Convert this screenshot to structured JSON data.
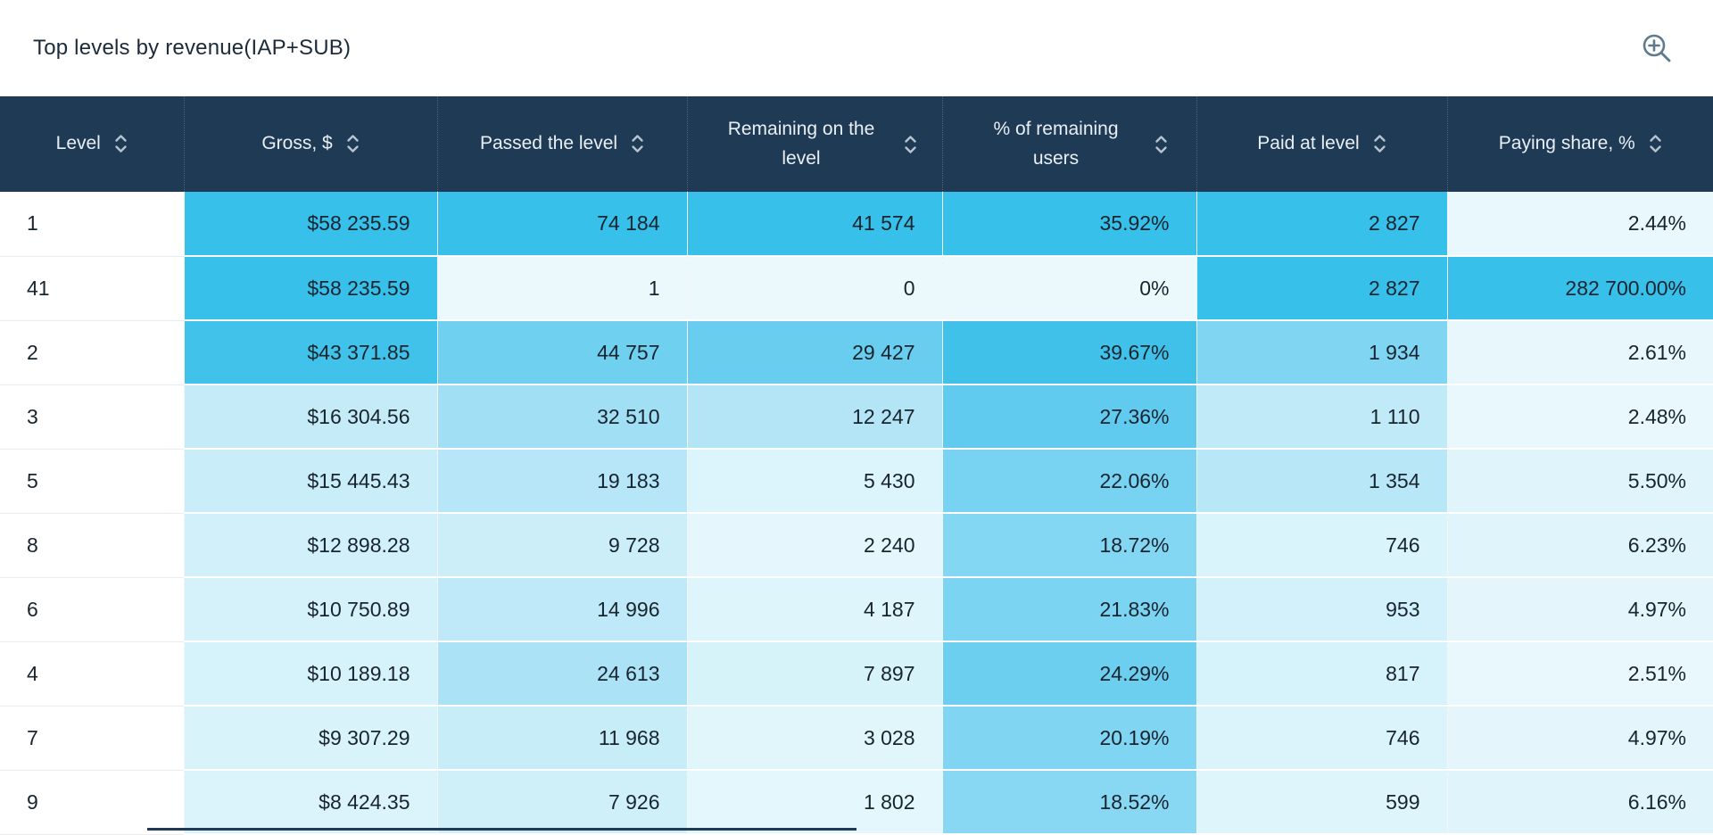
{
  "widget": {
    "title": "Top levels by revenue(IAP+SUB)"
  },
  "header_icons": {
    "zoom_in": "magnifier-plus-icon"
  },
  "colors": {
    "header_bg": "#1e3a54",
    "header_text": "#e9eff5",
    "sort_icon": "#b6c4d0",
    "zoom_icon": "#5e7a8e",
    "body_text": "#18242e",
    "heat_max": "#36c0ea",
    "heat_min": "#ebf9fd",
    "row_divider": "#e9eef2"
  },
  "table": {
    "columns": [
      {
        "label": "Level",
        "sortable": true
      },
      {
        "label": "Gross, $",
        "sortable": true
      },
      {
        "label": "Passed the level",
        "sortable": true
      },
      {
        "label": "Remaining on the level",
        "sortable": true
      },
      {
        "label": "% of remaining users",
        "sortable": true
      },
      {
        "label": "Paid at level",
        "sortable": true
      },
      {
        "label": "Paying share, %",
        "sortable": true
      }
    ],
    "rows": [
      {
        "cells": [
          {
            "text": "1",
            "bg": "#ffffff"
          },
          {
            "text": "$58 235.59",
            "bg": "#36c0ea"
          },
          {
            "text": "74 184",
            "bg": "#36c0ea"
          },
          {
            "text": "41 574",
            "bg": "#36c0ea"
          },
          {
            "text": "35.92%",
            "bg": "#36c0ea"
          },
          {
            "text": "2 827",
            "bg": "#36c0ea"
          },
          {
            "text": "2.44%",
            "bg": "#e9f8fd"
          }
        ]
      },
      {
        "cells": [
          {
            "text": "41",
            "bg": "#ffffff"
          },
          {
            "text": "$58 235.59",
            "bg": "#36c0ea"
          },
          {
            "text": "1",
            "bg": "#ebf9fd"
          },
          {
            "text": "0",
            "bg": "#ebf9fd"
          },
          {
            "text": "0%",
            "bg": "#ebf9fd"
          },
          {
            "text": "2 827",
            "bg": "#36c0ea"
          },
          {
            "text": "282 700.00%",
            "bg": "#36c0ea"
          }
        ]
      },
      {
        "cells": [
          {
            "text": "2",
            "bg": "#ffffff"
          },
          {
            "text": "$43 371.85",
            "bg": "#40c2ea"
          },
          {
            "text": "44 757",
            "bg": "#70d0f0"
          },
          {
            "text": "29 427",
            "bg": "#68cdef"
          },
          {
            "text": "39.67%",
            "bg": "#3fc1ea"
          },
          {
            "text": "1 934",
            "bg": "#80d6f2"
          },
          {
            "text": "2.61%",
            "bg": "#e7f7fc"
          }
        ]
      },
      {
        "cells": [
          {
            "text": "3",
            "bg": "#ffffff"
          },
          {
            "text": "$16 304.56",
            "bg": "#c5ebf8"
          },
          {
            "text": "32 510",
            "bg": "#a0dff4"
          },
          {
            "text": "12 247",
            "bg": "#b3e5f6"
          },
          {
            "text": "27.36%",
            "bg": "#60cbee"
          },
          {
            "text": "1 110",
            "bg": "#c0eaf8"
          },
          {
            "text": "2.48%",
            "bg": "#e9f8fd"
          }
        ]
      },
      {
        "cells": [
          {
            "text": "5",
            "bg": "#ffffff"
          },
          {
            "text": "$15 445.43",
            "bg": "#c9edf9"
          },
          {
            "text": "19 183",
            "bg": "#b6e6f7"
          },
          {
            "text": "5 430",
            "bg": "#dcf4fb"
          },
          {
            "text": "22.06%",
            "bg": "#77d3f1"
          },
          {
            "text": "1 354",
            "bg": "#b8e7f7"
          },
          {
            "text": "5.50%",
            "bg": "#e0f5fb"
          }
        ]
      },
      {
        "cells": [
          {
            "text": "8",
            "bg": "#ffffff"
          },
          {
            "text": "$12 898.28",
            "bg": "#d1f0fa"
          },
          {
            "text": "9 728",
            "bg": "#cbeef9"
          },
          {
            "text": "2 240",
            "bg": "#e5f7fc"
          },
          {
            "text": "18.72%",
            "bg": "#84d7f2"
          },
          {
            "text": "746",
            "bg": "#daf4fb"
          },
          {
            "text": "6.23%",
            "bg": "#dff5fb"
          }
        ]
      },
      {
        "cells": [
          {
            "text": "6",
            "bg": "#ffffff"
          },
          {
            "text": "$10 750.89",
            "bg": "#d5f1fa"
          },
          {
            "text": "14 996",
            "bg": "#bfe9f8"
          },
          {
            "text": "4 187",
            "bg": "#def5fb"
          },
          {
            "text": "21.83%",
            "bg": "#7bd4f1"
          },
          {
            "text": "953",
            "bg": "#d3f1fa"
          },
          {
            "text": "4.97%",
            "bg": "#e4f6fc"
          }
        ]
      },
      {
        "cells": [
          {
            "text": "4",
            "bg": "#ffffff"
          },
          {
            "text": "$10 189.18",
            "bg": "#d6f2fa"
          },
          {
            "text": "24 613",
            "bg": "#abe2f5"
          },
          {
            "text": "7 897",
            "bg": "#d7f3fa"
          },
          {
            "text": "24.29%",
            "bg": "#6ccfef"
          },
          {
            "text": "817",
            "bg": "#d6f2fa"
          },
          {
            "text": "2.51%",
            "bg": "#e9f8fd"
          }
        ]
      },
      {
        "cells": [
          {
            "text": "7",
            "bg": "#ffffff"
          },
          {
            "text": "$9 307.29",
            "bg": "#d9f3fb"
          },
          {
            "text": "11 968",
            "bg": "#c7edf9"
          },
          {
            "text": "3 028",
            "bg": "#e1f6fb"
          },
          {
            "text": "20.19%",
            "bg": "#7fd5f2"
          },
          {
            "text": "746",
            "bg": "#dbf4fb"
          },
          {
            "text": "4.97%",
            "bg": "#e4f6fc"
          }
        ]
      },
      {
        "cells": [
          {
            "text": "9",
            "bg": "#ffffff"
          },
          {
            "text": "$8 424.35",
            "bg": "#dbf4fb"
          },
          {
            "text": "7 926",
            "bg": "#cff0f9"
          },
          {
            "text": "1 802",
            "bg": "#e4f7fc"
          },
          {
            "text": "18.52%",
            "bg": "#88d8f3"
          },
          {
            "text": "599",
            "bg": "#ddf5fb"
          },
          {
            "text": "6.16%",
            "bg": "#dff5fb"
          }
        ]
      }
    ]
  },
  "chart_data": {
    "type": "table",
    "title": "Top levels by revenue(IAP+SUB)",
    "heatmap": true,
    "columns": [
      "Level",
      "Gross, $",
      "Passed the level",
      "Remaining on the level",
      "% of remaining users",
      "Paid at level",
      "Paying share, %"
    ],
    "rows": [
      [
        1,
        58235.59,
        74184,
        41574,
        35.92,
        2827,
        2.44
      ],
      [
        41,
        58235.59,
        1,
        0,
        0,
        2827,
        282700.0
      ],
      [
        2,
        43371.85,
        44757,
        29427,
        39.67,
        1934,
        2.61
      ],
      [
        3,
        16304.56,
        32510,
        12247,
        27.36,
        1110,
        2.48
      ],
      [
        5,
        15445.43,
        19183,
        5430,
        22.06,
        1354,
        5.5
      ],
      [
        8,
        12898.28,
        9728,
        2240,
        18.72,
        746,
        6.23
      ],
      [
        6,
        10750.89,
        14996,
        4187,
        21.83,
        953,
        4.97
      ],
      [
        4,
        10189.18,
        24613,
        7897,
        24.29,
        817,
        2.51
      ],
      [
        7,
        9307.29,
        11968,
        3028,
        20.19,
        746,
        4.97
      ],
      [
        9,
        8424.35,
        7926,
        1802,
        18.52,
        599,
        6.16
      ]
    ]
  }
}
